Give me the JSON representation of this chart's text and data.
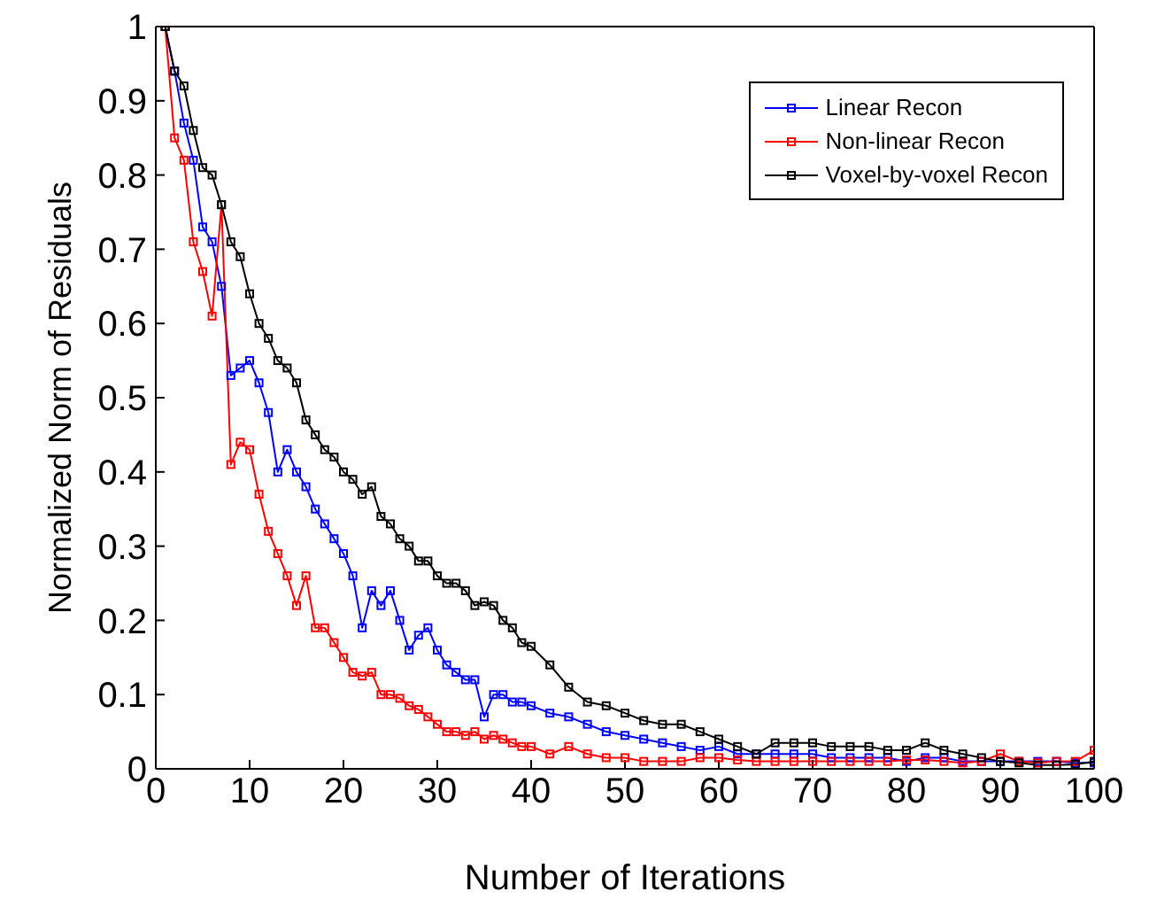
{
  "chart_data": {
    "type": "line",
    "xlabel": "Number of Iterations",
    "ylabel": "Normalized Norm of Residuals",
    "x": [
      1,
      2,
      3,
      4,
      5,
      6,
      7,
      8,
      9,
      10,
      11,
      12,
      13,
      14,
      15,
      16,
      17,
      18,
      19,
      20,
      21,
      22,
      23,
      24,
      25,
      26,
      27,
      28,
      29,
      30,
      31,
      32,
      33,
      34,
      35,
      36,
      37,
      38,
      39,
      40,
      42,
      44,
      46,
      48,
      50,
      52,
      54,
      56,
      58,
      60,
      62,
      64,
      66,
      68,
      70,
      72,
      74,
      76,
      78,
      80,
      82,
      84,
      86,
      88,
      90,
      92,
      94,
      96,
      98,
      100
    ],
    "series": [
      {
        "name": "Linear Recon",
        "color": "#0000ff",
        "values": [
          1.0,
          0.94,
          0.87,
          0.82,
          0.73,
          0.71,
          0.65,
          0.53,
          0.54,
          0.55,
          0.52,
          0.48,
          0.4,
          0.43,
          0.4,
          0.38,
          0.35,
          0.33,
          0.31,
          0.29,
          0.26,
          0.19,
          0.24,
          0.22,
          0.24,
          0.2,
          0.16,
          0.18,
          0.19,
          0.16,
          0.14,
          0.13,
          0.12,
          0.12,
          0.07,
          0.1,
          0.1,
          0.09,
          0.09,
          0.085,
          0.075,
          0.07,
          0.06,
          0.05,
          0.045,
          0.04,
          0.035,
          0.03,
          0.025,
          0.03,
          0.02,
          0.02,
          0.02,
          0.02,
          0.02,
          0.015,
          0.015,
          0.015,
          0.015,
          0.01,
          0.015,
          0.015,
          0.01,
          0.01,
          0.01,
          0.01,
          0.01,
          0.01,
          0.008,
          0.008
        ]
      },
      {
        "name": "Non-linear Recon",
        "color": "#ff0000",
        "values": [
          1.0,
          0.85,
          0.82,
          0.71,
          0.67,
          0.61,
          0.76,
          0.41,
          0.44,
          0.43,
          0.37,
          0.32,
          0.29,
          0.26,
          0.22,
          0.26,
          0.19,
          0.19,
          0.17,
          0.15,
          0.13,
          0.125,
          0.13,
          0.1,
          0.1,
          0.095,
          0.085,
          0.08,
          0.07,
          0.06,
          0.05,
          0.05,
          0.045,
          0.05,
          0.04,
          0.045,
          0.04,
          0.035,
          0.03,
          0.03,
          0.02,
          0.03,
          0.02,
          0.015,
          0.015,
          0.01,
          0.01,
          0.01,
          0.015,
          0.015,
          0.012,
          0.01,
          0.01,
          0.01,
          0.01,
          0.01,
          0.01,
          0.01,
          0.01,
          0.012,
          0.012,
          0.01,
          0.008,
          0.01,
          0.02,
          0.01,
          0.008,
          0.01,
          0.01,
          0.025
        ]
      },
      {
        "name": "Voxel-by-voxel Recon",
        "color": "#000000",
        "values": [
          1.0,
          0.94,
          0.92,
          0.86,
          0.81,
          0.8,
          0.76,
          0.71,
          0.69,
          0.64,
          0.6,
          0.58,
          0.55,
          0.54,
          0.52,
          0.47,
          0.45,
          0.43,
          0.42,
          0.4,
          0.39,
          0.37,
          0.38,
          0.34,
          0.33,
          0.31,
          0.3,
          0.28,
          0.28,
          0.26,
          0.25,
          0.25,
          0.24,
          0.22,
          0.225,
          0.22,
          0.2,
          0.19,
          0.17,
          0.165,
          0.14,
          0.11,
          0.09,
          0.085,
          0.075,
          0.065,
          0.06,
          0.06,
          0.05,
          0.04,
          0.03,
          0.02,
          0.035,
          0.035,
          0.035,
          0.03,
          0.03,
          0.03,
          0.025,
          0.025,
          0.035,
          0.025,
          0.02,
          0.015,
          0.01,
          0.008,
          0.005,
          0.005,
          0.006,
          0.01
        ]
      }
    ],
    "xlim": [
      0,
      100
    ],
    "xticks": [
      0,
      10,
      20,
      30,
      40,
      50,
      60,
      70,
      80,
      90,
      100
    ],
    "ylim": [
      0,
      1
    ],
    "yticks": [
      0,
      0.1,
      0.2,
      0.3,
      0.4,
      0.5,
      0.6,
      0.7,
      0.8,
      0.9,
      1
    ],
    "grid": false,
    "legend": "top right",
    "marker": "square",
    "line_style": "solid"
  }
}
